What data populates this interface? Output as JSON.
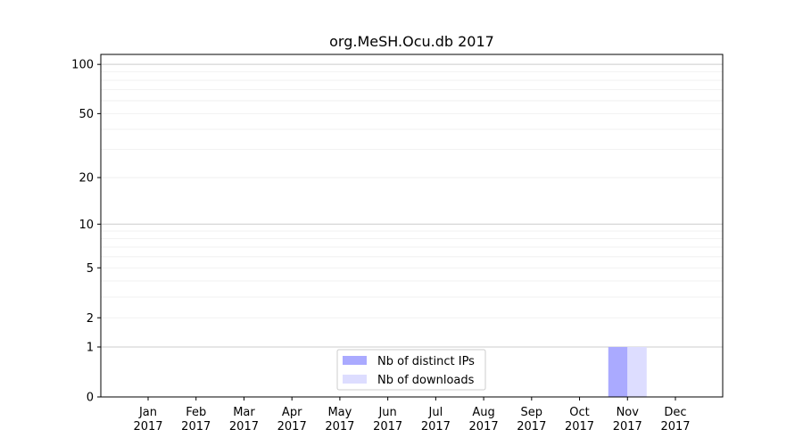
{
  "chart_data": {
    "type": "bar",
    "title": "org.MeSH.Ocu.db 2017",
    "xlabel": "",
    "ylabel": "",
    "y_scale": "log(1+y)",
    "ylim": [
      0,
      115
    ],
    "y_ticks": [
      0,
      1,
      2,
      5,
      10,
      20,
      50,
      100
    ],
    "y_tick_labels": [
      "0",
      "1",
      "2",
      "5",
      "10",
      "20",
      "50",
      "100"
    ],
    "grid": true,
    "legend_position": "bottom-center",
    "categories": [
      "Jan\n2017",
      "Feb\n2017",
      "Mar\n2017",
      "Apr\n2017",
      "May\n2017",
      "Jun\n2017",
      "Jul\n2017",
      "Aug\n2017",
      "Sep\n2017",
      "Oct\n2017",
      "Nov\n2017",
      "Dec\n2017"
    ],
    "category_months": [
      "Jan",
      "Feb",
      "Mar",
      "Apr",
      "May",
      "Jun",
      "Jul",
      "Aug",
      "Sep",
      "Oct",
      "Nov",
      "Dec"
    ],
    "category_year": "2017",
    "series": [
      {
        "name": "Nb of distinct IPs",
        "color": "#aaaaff",
        "values": [
          0,
          0,
          0,
          0,
          0,
          0,
          0,
          0,
          0,
          0,
          1,
          0
        ]
      },
      {
        "name": "Nb of downloads",
        "color": "#ddddff",
        "values": [
          0,
          0,
          0,
          0,
          0,
          0,
          0,
          0,
          0,
          0,
          1,
          0
        ]
      }
    ]
  }
}
